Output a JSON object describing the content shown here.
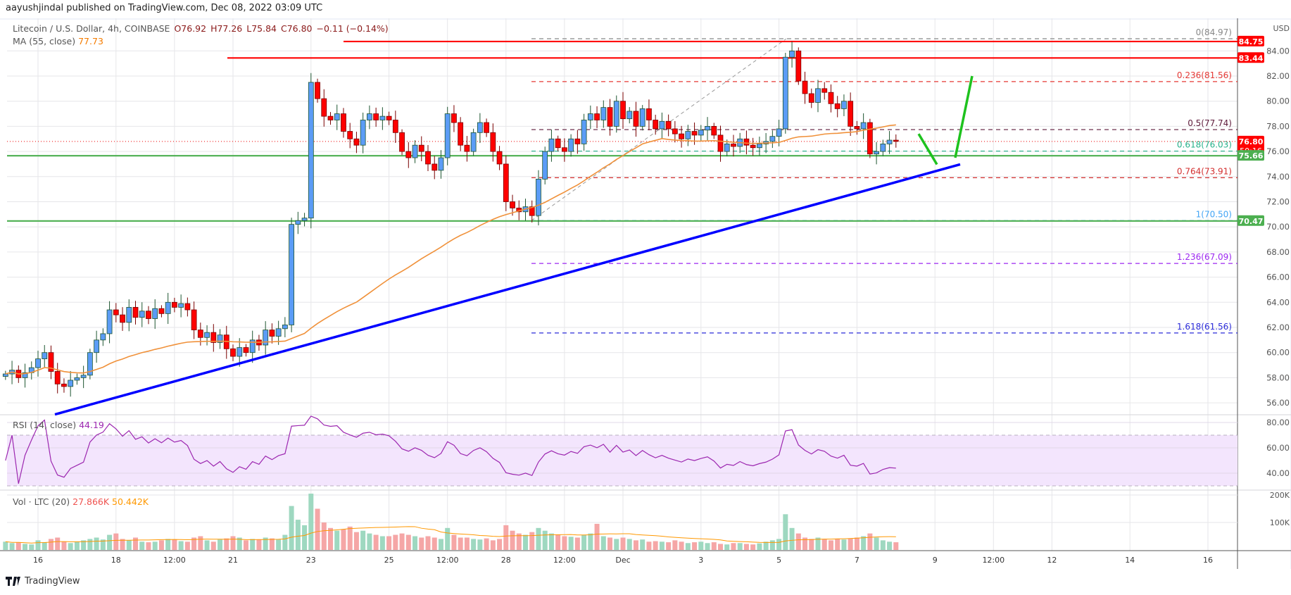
{
  "header": {
    "published": "aayushjindal published on TradingView.com, Dec 08, 2022 03:09 UTC"
  },
  "legend": {
    "symbol": "Litecoin / U.S. Dollar, 4h, COINBASE",
    "open": "O76.92",
    "high": "H77.26",
    "low": "L75.84",
    "close": "C76.80",
    "change": "−0.11 (−0.14%)",
    "ma_label": "MA (55, close)",
    "ma_value": "77.73"
  },
  "rsi": {
    "label": "RSI (14, close)",
    "value": "44.19",
    "ticks": [
      "80.00",
      "60.00",
      "40.00"
    ]
  },
  "volume": {
    "label": "Vol · LTC (20)",
    "value": "27.866K",
    "ma_value": "50.442K",
    "ticks": [
      "200K",
      "100K"
    ]
  },
  "price_axis": {
    "currency": "USD",
    "ticks": [
      "84.00",
      "82.00",
      "80.00",
      "78.00",
      "76.00",
      "74.00",
      "72.00",
      "70.00",
      "68.00",
      "66.00",
      "64.00",
      "62.00",
      "60.00",
      "58.00",
      "56.00"
    ]
  },
  "time_axis": {
    "labels": [
      "16",
      "18",
      "12:00",
      "21",
      "23",
      "25",
      "12:00",
      "28",
      "12:00",
      "Dec",
      "3",
      "5",
      "7",
      "9",
      "12:00",
      "12",
      "14",
      "16"
    ]
  },
  "price_tags": [
    {
      "value": "84.75",
      "color": "#ff0000"
    },
    {
      "value": "83.44",
      "color": "#ff0000"
    },
    {
      "value": "76.80",
      "sub": "50:16",
      "color": "#ff0000"
    },
    {
      "value": "75.66",
      "color": "#4caf50"
    },
    {
      "value": "70.47",
      "color": "#4caf50"
    }
  ],
  "fib_levels": [
    {
      "label": "0(84.97)",
      "price": 84.97,
      "color": "#888888"
    },
    {
      "label": "0.236(81.56)",
      "price": 81.56,
      "color": "#e53935"
    },
    {
      "label": "0.5(77.74)",
      "price": 77.74,
      "color": "#5d1a3a"
    },
    {
      "label": "0.618(76.03)",
      "price": 76.03,
      "color": "#26b08a"
    },
    {
      "label": "0.764(73.91)",
      "price": 73.91,
      "color": "#d32f2f"
    },
    {
      "label": "1(70.50)",
      "price": 70.5,
      "color": "#42a5f5"
    },
    {
      "label": "1.236(67.09)",
      "price": 67.09,
      "color": "#9c27f0"
    },
    {
      "label": "1.618(61.56)",
      "price": 61.56,
      "color": "#2b2bd9"
    }
  ],
  "horizontal_lines": [
    {
      "price": 84.75,
      "color": "#ff0000"
    },
    {
      "price": 83.44,
      "color": "#ff0000"
    },
    {
      "price": 75.66,
      "color": "#4caf50"
    },
    {
      "price": 70.47,
      "color": "#4caf50"
    }
  ],
  "colors": {
    "up": "#5b9cf6",
    "up_border": "#1e5631",
    "down": "#ff0000",
    "down_border": "#7a0000",
    "ma": "#f0913a",
    "trend": "#0000ff",
    "arrow": "#1ec21e",
    "rsi": "#9c27b0",
    "rsi_band": "#f3e5fd"
  },
  "chart_data": {
    "type": "candlestick",
    "interval": "4h",
    "start": "Nov 15 04:00",
    "closes": [
      58.3,
      58.6,
      58.0,
      58.4,
      58.8,
      59.5,
      60.0,
      58.5,
      57.5,
      57.3,
      57.8,
      58.0,
      58.2,
      60.0,
      61.0,
      61.5,
      63.4,
      63.0,
      62.4,
      63.6,
      62.8,
      63.3,
      62.7,
      63.5,
      63.1,
      64.0,
      63.6,
      63.9,
      63.4,
      61.8,
      61.2,
      61.6,
      60.8,
      61.4,
      60.3,
      59.7,
      60.4,
      60.0,
      61.0,
      60.6,
      61.8,
      61.3,
      61.9,
      62.2,
      70.2,
      70.5,
      70.7,
      81.5,
      80.2,
      78.8,
      78.5,
      79.0,
      77.6,
      77.0,
      76.5,
      78.5,
      79.0,
      78.5,
      78.8,
      78.5,
      77.5,
      76.0,
      75.5,
      76.5,
      76.0,
      75.0,
      74.5,
      75.5,
      79.0,
      78.3,
      76.5,
      76.0,
      77.5,
      78.3,
      77.5,
      76.0,
      75.0,
      72.0,
      71.5,
      71.2,
      71.6,
      70.9,
      73.8,
      76.0,
      77.0,
      76.3,
      76.0,
      77.0,
      76.6,
      78.5,
      79.0,
      78.5,
      79.5,
      78.0,
      80.0,
      78.6,
      79.2,
      78.0,
      79.4,
      78.5,
      77.8,
      78.4,
      77.8,
      77.4,
      77.0,
      77.6,
      77.3,
      77.7,
      78.0,
      77.3,
      76.0,
      76.6,
      76.4,
      77.0,
      76.5,
      76.3,
      76.6,
      76.8,
      77.2,
      77.8,
      83.5,
      84.0,
      81.6,
      80.6,
      79.9,
      81.0,
      80.7,
      79.8,
      79.4,
      80.0,
      78.0,
      77.8,
      78.3,
      75.8,
      76.0,
      76.6,
      76.9,
      76.8
    ],
    "volumes_k": [
      30,
      25,
      28,
      22,
      20,
      35,
      28,
      40,
      45,
      30,
      25,
      30,
      35,
      40,
      45,
      38,
      55,
      60,
      40,
      35,
      45,
      30,
      28,
      30,
      35,
      40,
      38,
      32,
      30,
      45,
      50,
      35,
      30,
      38,
      42,
      50,
      45,
      35,
      40,
      38,
      45,
      42,
      38,
      55,
      160,
      110,
      90,
      205,
      150,
      100,
      80,
      70,
      75,
      85,
      65,
      70,
      60,
      55,
      50,
      50,
      55,
      60,
      55,
      50,
      45,
      50,
      45,
      40,
      80,
      55,
      45,
      45,
      40,
      38,
      42,
      35,
      40,
      90,
      70,
      60,
      55,
      65,
      80,
      70,
      60,
      55,
      50,
      48,
      45,
      55,
      60,
      95,
      50,
      45,
      40,
      45,
      40,
      35,
      38,
      30,
      32,
      30,
      28,
      35,
      30,
      25,
      28,
      30,
      25,
      28,
      22,
      20,
      25,
      25,
      22,
      20,
      24,
      30,
      35,
      40,
      130,
      80,
      60,
      45,
      40,
      45,
      40,
      35,
      40,
      38,
      42,
      45,
      50,
      60,
      45,
      35,
      30,
      28
    ],
    "ylim": [
      55,
      86
    ],
    "trendline": {
      "from_price": 55.08,
      "to_price": 74.97
    },
    "fib_anchor": {
      "low": 70.5,
      "high": 84.97
    },
    "current_price": 76.8
  },
  "footer": {
    "brand": "TradingView"
  }
}
